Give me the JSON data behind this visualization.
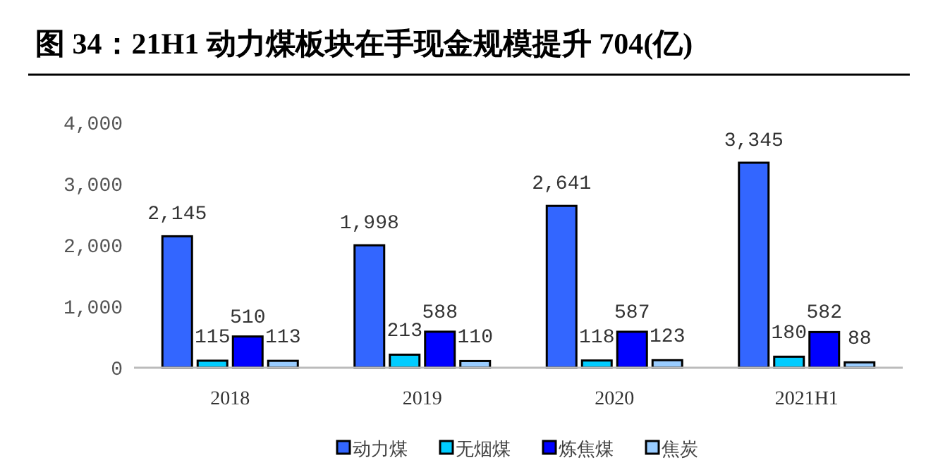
{
  "chart_data": {
    "type": "bar",
    "title": "图 34：21H1 动力煤板块在手现金规模提升 704(亿)",
    "categories": [
      "2018",
      "2019",
      "2020",
      "2021H1"
    ],
    "series": [
      {
        "name": "动力煤",
        "color": "#3366ff",
        "values": [
          2145,
          1998,
          2641,
          3345
        ],
        "value_labels": [
          "2,145",
          "1,998",
          "2,641",
          "3,345"
        ]
      },
      {
        "name": "无烟煤",
        "color": "#00ccff",
        "values": [
          115,
          213,
          118,
          180
        ]
      },
      {
        "name": "炼焦煤",
        "color": "#0000ff",
        "values": [
          510,
          588,
          587,
          582
        ]
      },
      {
        "name": "焦炭",
        "color": "#99ccff",
        "values": [
          113,
          110,
          123,
          88
        ]
      }
    ],
    "data_labels": true,
    "ylim": [
      0,
      4000
    ],
    "yticks": [
      0,
      {
        "value": 1000,
        "label": "1,000"
      },
      {
        "value": 2000,
        "label": "2,000"
      },
      {
        "value": 3000,
        "label": "3,000"
      },
      {
        "value": 4000,
        "label": "4,000"
      }
    ],
    "grid": false,
    "legend": "bottom"
  }
}
